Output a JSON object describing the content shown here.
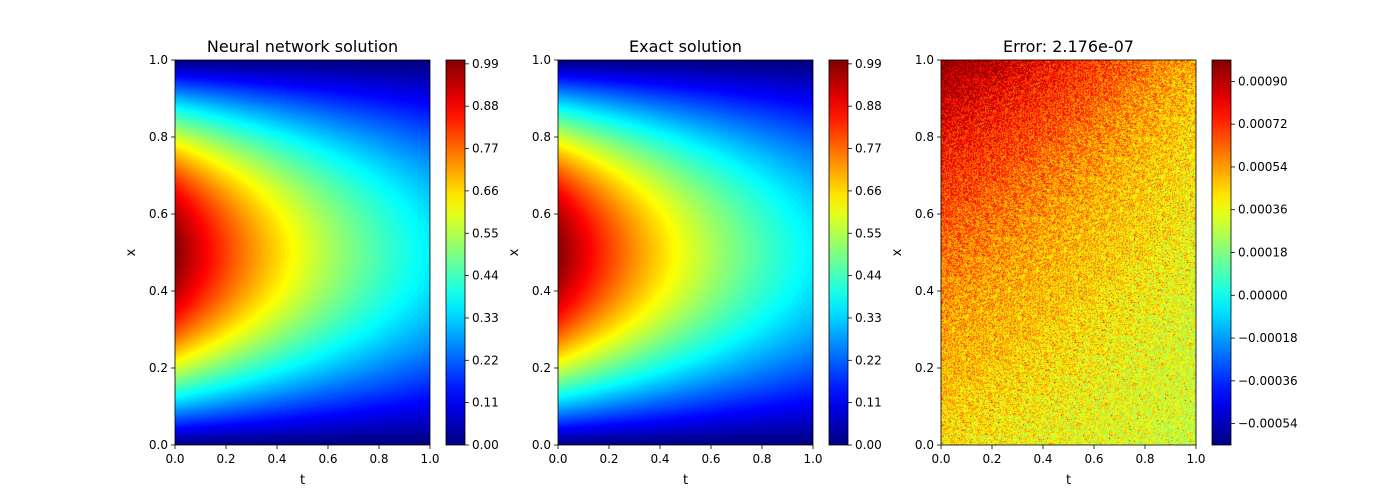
{
  "chart_data": [
    {
      "type": "heatmap",
      "title": "Neural network solution",
      "xlabel": "t",
      "ylabel": "x",
      "xlim": [
        0.0,
        1.0
      ],
      "ylim": [
        0.0,
        1.0
      ],
      "xticks": [
        "0.0",
        "0.2",
        "0.4",
        "0.6",
        "0.8",
        "1.0"
      ],
      "yticks": [
        "0.0",
        "0.2",
        "0.4",
        "0.6",
        "0.8",
        "1.0"
      ],
      "colormap": "jet",
      "function": "exp(-t) * sin(pi * x)",
      "colorbar": {
        "vmin": 0.0,
        "vmax": 1.0,
        "ticks": [
          0.0,
          0.11,
          0.22,
          0.33,
          0.44,
          0.55,
          0.66,
          0.77,
          0.88,
          0.99
        ],
        "tick_labels": [
          "0.00",
          "0.11",
          "0.22",
          "0.33",
          "0.44",
          "0.55",
          "0.66",
          "0.77",
          "0.88",
          "0.99"
        ]
      }
    },
    {
      "type": "heatmap",
      "title": "Exact solution",
      "xlabel": "t",
      "ylabel": "x",
      "xlim": [
        0.0,
        1.0
      ],
      "ylim": [
        0.0,
        1.0
      ],
      "xticks": [
        "0.0",
        "0.2",
        "0.4",
        "0.6",
        "0.8",
        "1.0"
      ],
      "yticks": [
        "0.0",
        "0.2",
        "0.4",
        "0.6",
        "0.8",
        "1.0"
      ],
      "colormap": "jet",
      "function": "exp(-t) * sin(pi * x)",
      "colorbar": {
        "vmin": 0.0,
        "vmax": 1.0,
        "ticks": [
          0.0,
          0.11,
          0.22,
          0.33,
          0.44,
          0.55,
          0.66,
          0.77,
          0.88,
          0.99
        ],
        "tick_labels": [
          "0.00",
          "0.11",
          "0.22",
          "0.33",
          "0.44",
          "0.55",
          "0.66",
          "0.77",
          "0.88",
          "0.99"
        ]
      }
    },
    {
      "type": "heatmap",
      "title": "Error:  2.176e-07",
      "xlabel": "t",
      "ylabel": "x",
      "xlim": [
        0.0,
        1.0
      ],
      "ylim": [
        0.0,
        1.0
      ],
      "xticks": [
        "0.0",
        "0.2",
        "0.4",
        "0.6",
        "0.8",
        "1.0"
      ],
      "yticks": [
        "0.0",
        "0.2",
        "0.4",
        "0.6",
        "0.8",
        "1.0"
      ],
      "colormap": "jet",
      "pattern": "noisy error field, mostly 0.0002 to 0.0009, higher toward small t and large x",
      "colorbar": {
        "vmin": -0.00063,
        "vmax": 0.00099,
        "ticks": [
          -0.00054,
          -0.00036,
          -0.00018,
          0.0,
          0.00018,
          0.00036,
          0.00054,
          0.00072,
          0.0009
        ],
        "tick_labels": [
          "−0.00054",
          "−0.00036",
          "−0.00018",
          "0.00000",
          "0.00018",
          "0.00036",
          "0.00054",
          "0.00072",
          "0.00090"
        ]
      }
    }
  ]
}
